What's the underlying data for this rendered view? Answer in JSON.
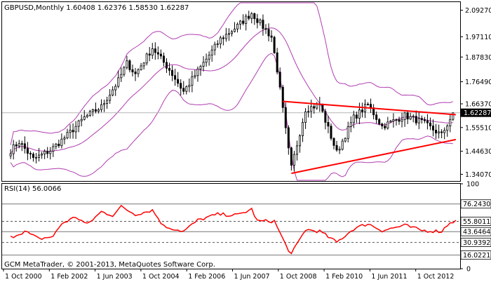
{
  "chart_data": [
    {
      "type": "candlestick",
      "panel": "price",
      "symbol": "GBPUSD",
      "timeframe": "Monthly",
      "header": "GBPUSD,Monthly  1.60408 1.62376 1.58530 1.62287",
      "ohlc_current": {
        "open": 1.60408,
        "high": 1.62376,
        "low": 1.5853,
        "close": 1.62287
      },
      "current_price_label": "1.62287",
      "y_ticks": [
        "2.09270",
        "1.97110",
        "1.87830",
        "1.76490",
        "1.66370",
        "1.55510",
        "1.44630",
        "1.34070"
      ],
      "y_tick_values": [
        2.0927,
        1.9711,
        1.8783,
        1.7649,
        1.6637,
        1.5551,
        1.4463,
        1.3407
      ],
      "ylim": [
        1.31,
        2.13
      ],
      "x_ticks": [
        "1 Oct 2000",
        "1 Feb 2002",
        "1 Jun 2003",
        "1 Oct 2004",
        "1 Feb 2006",
        "1 Jun 2007",
        "1 Oct 2008",
        "1 Feb 2010",
        "1 Jun 2011",
        "1 Oct 2012"
      ],
      "close_path": [
        {
          "date": "2000-10",
          "close": 1.45
        },
        {
          "date": "2001-01",
          "close": 1.49
        },
        {
          "date": "2001-06",
          "close": 1.41
        },
        {
          "date": "2001-12",
          "close": 1.45
        },
        {
          "date": "2002-06",
          "close": 1.52
        },
        {
          "date": "2002-12",
          "close": 1.6
        },
        {
          "date": "2003-06",
          "close": 1.65
        },
        {
          "date": "2003-12",
          "close": 1.77
        },
        {
          "date": "2004-03",
          "close": 1.85
        },
        {
          "date": "2004-06",
          "close": 1.8
        },
        {
          "date": "2004-12",
          "close": 1.92
        },
        {
          "date": "2005-06",
          "close": 1.82
        },
        {
          "date": "2005-11",
          "close": 1.72
        },
        {
          "date": "2006-06",
          "close": 1.85
        },
        {
          "date": "2006-12",
          "close": 1.96
        },
        {
          "date": "2007-06",
          "close": 2.02
        },
        {
          "date": "2007-11",
          "close": 2.08
        },
        {
          "date": "2008-06",
          "close": 1.97
        },
        {
          "date": "2008-08",
          "close": 1.82
        },
        {
          "date": "2008-12",
          "close": 1.45
        },
        {
          "date": "2009-01",
          "close": 1.37
        },
        {
          "date": "2009-06",
          "close": 1.64
        },
        {
          "date": "2009-11",
          "close": 1.66
        },
        {
          "date": "2010-05",
          "close": 1.44
        },
        {
          "date": "2010-11",
          "close": 1.6
        },
        {
          "date": "2011-04",
          "close": 1.66
        },
        {
          "date": "2011-09",
          "close": 1.56
        },
        {
          "date": "2012-05",
          "close": 1.61
        },
        {
          "date": "2012-11",
          "close": 1.58
        },
        {
          "date": "2013-06",
          "close": 1.52
        },
        {
          "date": "2013-10",
          "close": 1.62
        }
      ],
      "overlays": {
        "bollinger": {
          "color": "#b03cb0"
        },
        "trendlines": {
          "color": "#ff0000",
          "upper": [
            {
              "date": "2008-10",
              "value": 1.675
            },
            {
              "date": "2013-11",
              "value": 1.614
            }
          ],
          "lower": [
            {
              "date": "2009-01",
              "value": 1.345
            },
            {
              "date": "2013-11",
              "value": 1.5
            }
          ]
        },
        "current_price_line": 1.62287
      },
      "colors": {
        "candles": "#000000",
        "axis_box": "#000000",
        "label_bg": "#000000",
        "label_fg": "#ffffff"
      }
    },
    {
      "type": "line",
      "panel": "indicator",
      "title": "RSI(14) 56.0066",
      "current": 56.0066,
      "ylim": [
        0,
        100
      ],
      "y_ticks": [
        "100",
        "76.24309",
        "55.80113",
        "43.64641",
        "30.93923",
        "16.02210",
        "0"
      ],
      "y_tick_values": [
        100,
        76.24309,
        55.80113,
        43.64641,
        30.93923,
        16.0221,
        0
      ],
      "levels_dashed": [
        55.80113,
        30.93923
      ],
      "levels_solid": [
        76.24309,
        43.64641,
        16.0221
      ],
      "series": [
        {
          "values_by_date": [
            {
              "date": "2000-10",
              "rsi": 37
            },
            {
              "date": "2001-03",
              "rsi": 44
            },
            {
              "date": "2001-08",
              "rsi": 35
            },
            {
              "date": "2002-01",
              "rsi": 38
            },
            {
              "date": "2002-04",
              "rsi": 53
            },
            {
              "date": "2002-09",
              "rsi": 61
            },
            {
              "date": "2003-01",
              "rsi": 52
            },
            {
              "date": "2003-06",
              "rsi": 67
            },
            {
              "date": "2003-10",
              "rsi": 63
            },
            {
              "date": "2004-01",
              "rsi": 73
            },
            {
              "date": "2004-06",
              "rsi": 64
            },
            {
              "date": "2004-12",
              "rsi": 69
            },
            {
              "date": "2005-04",
              "rsi": 50
            },
            {
              "date": "2005-11",
              "rsi": 44
            },
            {
              "date": "2006-04",
              "rsi": 57
            },
            {
              "date": "2006-11",
              "rsi": 64
            },
            {
              "date": "2007-06",
              "rsi": 63
            },
            {
              "date": "2007-11",
              "rsi": 70
            },
            {
              "date": "2008-01",
              "rsi": 56
            },
            {
              "date": "2008-07",
              "rsi": 56
            },
            {
              "date": "2008-11",
              "rsi": 28
            },
            {
              "date": "2009-01",
              "rsi": 17
            },
            {
              "date": "2009-06",
              "rsi": 46
            },
            {
              "date": "2009-11",
              "rsi": 44
            },
            {
              "date": "2010-05",
              "rsi": 31
            },
            {
              "date": "2010-11",
              "rsi": 47
            },
            {
              "date": "2011-04",
              "rsi": 53
            },
            {
              "date": "2011-09",
              "rsi": 45
            },
            {
              "date": "2012-05",
              "rsi": 51
            },
            {
              "date": "2012-11",
              "rsi": 45
            },
            {
              "date": "2013-06",
              "rsi": 44
            },
            {
              "date": "2013-09",
              "rsi": 55
            },
            {
              "date": "2013-11",
              "rsi": 56
            }
          ]
        }
      ],
      "color": "#ff0000"
    }
  ],
  "footer": "GCM MetaTrader, © 2001-2013, MetaQuotes Software Corp."
}
